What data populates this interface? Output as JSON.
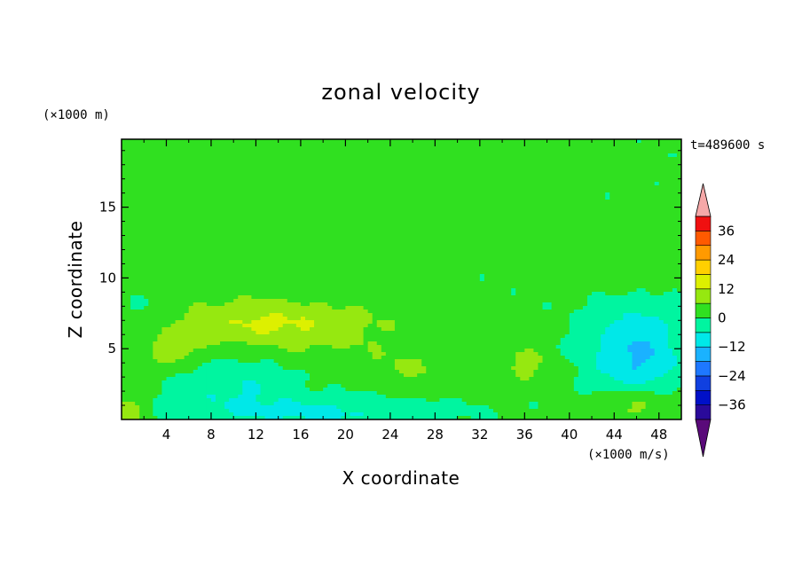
{
  "chart_data": {
    "type": "heatmap",
    "title": "zonal velocity",
    "xlabel": "X coordinate",
    "ylabel": "Z coordinate",
    "x_unit": "(×1000 m/s)",
    "y_unit": "(×1000 m)",
    "time_label": "t=489600 s",
    "xlim": [
      0,
      50
    ],
    "ylim": [
      0,
      19.8
    ],
    "x_ticks": [
      4,
      8,
      12,
      16,
      20,
      24,
      28,
      32,
      36,
      40,
      44,
      48
    ],
    "y_ticks": [
      5,
      10,
      15
    ],
    "colorbar": {
      "levels": [
        -42,
        -36,
        -30,
        -24,
        -18,
        -12,
        -6,
        0,
        6,
        12,
        18,
        24,
        30,
        36,
        42
      ],
      "labeled_ticks": [
        36,
        24,
        12,
        0,
        -12,
        -24,
        -36
      ],
      "extends": "both",
      "colors": [
        "#5a0a7a",
        "#2a0a9a",
        "#0010c8",
        "#1040e0",
        "#1e78ff",
        "#1ab2ff",
        "#00e8e8",
        "#00f5a0",
        "#30e020",
        "#96e810",
        "#ddf000",
        "#ffd000",
        "#ff9a00",
        "#ff5a00",
        "#f01010",
        "#f5a8a8",
        "#8c00b4"
      ]
    },
    "field_note": "Smooth contour field; values mostly between -12 and 12, with positive bands near Z 3-8 and negative pockets near the bottom and at X≈46, Z≈4.",
    "field_blobs": [
      {
        "x": 0,
        "z": 11,
        "v": 4,
        "sx": 10,
        "sz": 4
      },
      {
        "x": 16,
        "z": 6.5,
        "v": 8,
        "sx": 10,
        "sz": 2
      },
      {
        "x": 12,
        "z": 7,
        "v": 5,
        "sx": 6,
        "sz": 1.5
      },
      {
        "x": 4.5,
        "z": 5,
        "v": 8,
        "sx": 2.5,
        "sz": 1.5
      },
      {
        "x": 26,
        "z": 3.5,
        "v": 5,
        "sx": 6,
        "sz": 1.5
      },
      {
        "x": 36,
        "z": 4,
        "v": 7,
        "sx": 2,
        "sz": 1.5
      },
      {
        "x": 46,
        "z": 1,
        "v": 10,
        "sx": 4,
        "sz": 1.5
      },
      {
        "x": 0.5,
        "z": 0.5,
        "v": 10,
        "sx": 1.5,
        "sz": 1
      },
      {
        "x": 46,
        "z": 4.5,
        "v": -14,
        "sx": 4,
        "sz": 3.5
      },
      {
        "x": 10,
        "z": 2.5,
        "v": -7,
        "sx": 5,
        "sz": 2
      },
      {
        "x": 18,
        "z": 0.5,
        "v": -8,
        "sx": 10,
        "sz": 1.2
      },
      {
        "x": 2,
        "z": 8,
        "v": -4,
        "sx": 3,
        "sz": 2
      },
      {
        "x": 28,
        "z": 18,
        "v": 4,
        "sx": 12,
        "sz": 1.5
      },
      {
        "x": 6,
        "z": 19,
        "v": 3,
        "sx": 10,
        "sz": 1
      },
      {
        "x": 30,
        "z": 13,
        "v": 3.5,
        "sx": 10,
        "sz": 1.5
      },
      {
        "x": 45,
        "z": 11,
        "v": 4,
        "sx": 6,
        "sz": 2
      }
    ]
  }
}
